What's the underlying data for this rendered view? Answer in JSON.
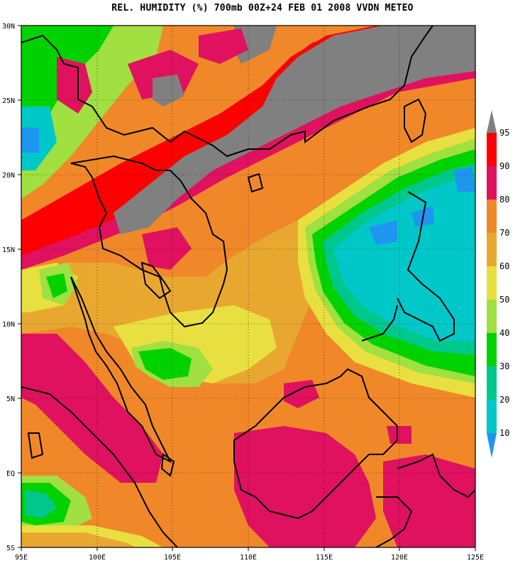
{
  "title": "REL. HUMIDITY (%) 700mb 00Z+24 FEB 01 2008 VVDN METEO",
  "map": {
    "lat_labels": [
      "30N",
      "25N",
      "20N",
      "15N",
      "10N",
      "5N",
      "EQ",
      "5S"
    ],
    "lon_labels": [
      "95E",
      "100E",
      "105E",
      "110E",
      "115E",
      "120E",
      "125E"
    ],
    "lon_range": [
      95,
      125
    ],
    "lat_range": [
      -5,
      30
    ]
  },
  "colorbar": {
    "labels": [
      "95",
      "90",
      "80",
      "70",
      "60",
      "50",
      "40",
      "30",
      "20",
      "10"
    ],
    "colors": {
      "above95": "#808080",
      "c90_95": "#ff0000",
      "c80_90": "#e0115f",
      "c70_80": "#f0882a",
      "c60_70": "#e8a830",
      "c50_60": "#e8e040",
      "c40_50": "#a0e040",
      "c30_40": "#00d200",
      "c20_30": "#00c88c",
      "c10_20": "#00c8c8",
      "below10": "#1e96f0"
    }
  }
}
